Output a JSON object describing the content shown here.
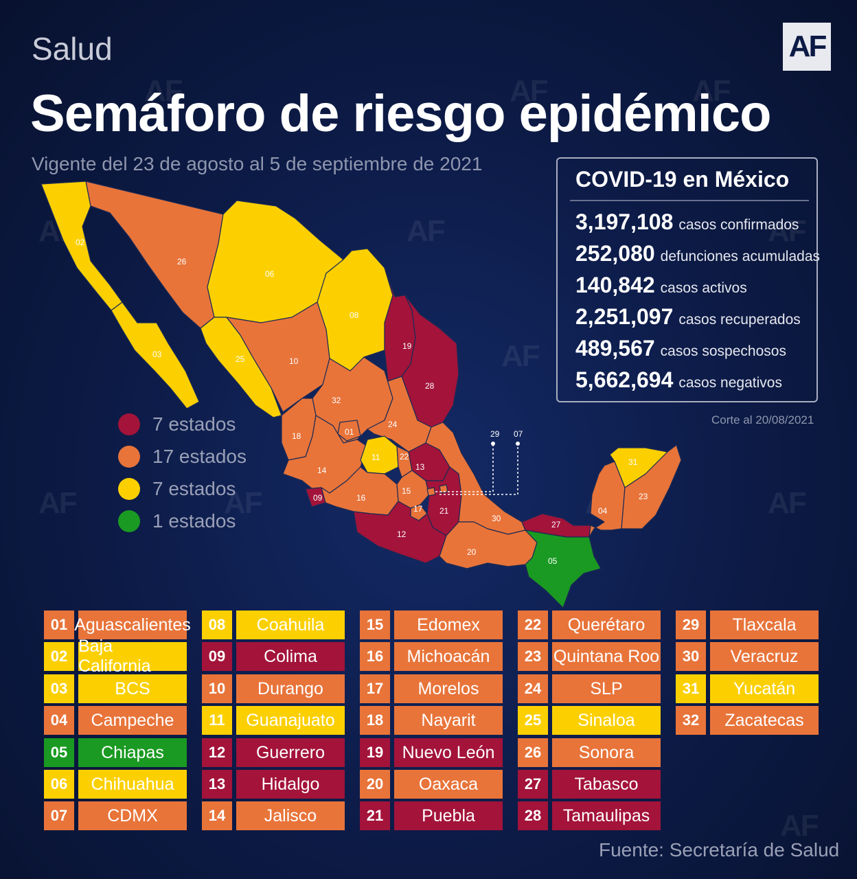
{
  "header": {
    "section": "Salud",
    "logo": "AF",
    "title": "Semáforo de riesgo epidémico",
    "subtitle": "Vigente del 23 de agosto al 5 de septiembre de 2021"
  },
  "colors": {
    "red": "#a3133a",
    "orange": "#e8743a",
    "yellow": "#fcd000",
    "green": "#1a9a22",
    "background": "#0c1a45"
  },
  "stats": {
    "title": "COVID-19 en México",
    "rows": [
      {
        "value": "3,197,108",
        "label": "casos confirmados"
      },
      {
        "value": "252,080",
        "label": "defunciones acumuladas"
      },
      {
        "value": "140,842",
        "label": "casos activos"
      },
      {
        "value": "2,251,097",
        "label": "casos recuperados"
      },
      {
        "value": "489,567",
        "label": "casos sospechosos"
      },
      {
        "value": "5,662,694",
        "label": "casos negativos"
      }
    ],
    "cutoff": "Corte al 20/08/2021"
  },
  "legend": [
    {
      "color": "red",
      "label": "7 estados"
    },
    {
      "color": "orange",
      "label": "17 estados"
    },
    {
      "color": "yellow",
      "label": "7 estados"
    },
    {
      "color": "green",
      "label": "1 estados"
    }
  ],
  "map_callouts": [
    "29",
    "07"
  ],
  "states": [
    {
      "code": "01",
      "name": "Aguascalientes",
      "color": "orange"
    },
    {
      "code": "02",
      "name": "Baja California",
      "color": "yellow"
    },
    {
      "code": "03",
      "name": "BCS",
      "color": "yellow"
    },
    {
      "code": "04",
      "name": "Campeche",
      "color": "orange"
    },
    {
      "code": "05",
      "name": "Chiapas",
      "color": "green"
    },
    {
      "code": "06",
      "name": "Chihuahua",
      "color": "yellow"
    },
    {
      "code": "07",
      "name": "CDMX",
      "color": "orange"
    },
    {
      "code": "08",
      "name": "Coahuila",
      "color": "yellow"
    },
    {
      "code": "09",
      "name": "Colima",
      "color": "red"
    },
    {
      "code": "10",
      "name": "Durango",
      "color": "orange"
    },
    {
      "code": "11",
      "name": "Guanajuato",
      "color": "yellow"
    },
    {
      "code": "12",
      "name": "Guerrero",
      "color": "red"
    },
    {
      "code": "13",
      "name": "Hidalgo",
      "color": "red"
    },
    {
      "code": "14",
      "name": "Jalisco",
      "color": "orange"
    },
    {
      "code": "15",
      "name": "Edomex",
      "color": "orange"
    },
    {
      "code": "16",
      "name": "Michoacán",
      "color": "orange"
    },
    {
      "code": "17",
      "name": "Morelos",
      "color": "orange"
    },
    {
      "code": "18",
      "name": "Nayarit",
      "color": "orange"
    },
    {
      "code": "19",
      "name": "Nuevo León",
      "color": "red"
    },
    {
      "code": "20",
      "name": "Oaxaca",
      "color": "orange"
    },
    {
      "code": "21",
      "name": "Puebla",
      "color": "red"
    },
    {
      "code": "22",
      "name": "Querétaro",
      "color": "orange"
    },
    {
      "code": "23",
      "name": "Quintana Roo",
      "color": "orange"
    },
    {
      "code": "24",
      "name": "SLP",
      "color": "orange"
    },
    {
      "code": "25",
      "name": "Sinaloa",
      "color": "yellow"
    },
    {
      "code": "26",
      "name": "Sonora",
      "color": "orange"
    },
    {
      "code": "27",
      "name": "Tabasco",
      "color": "red"
    },
    {
      "code": "28",
      "name": "Tamaulipas",
      "color": "red"
    },
    {
      "code": "29",
      "name": "Tlaxcala",
      "color": "orange"
    },
    {
      "code": "30",
      "name": "Veracruz",
      "color": "orange"
    },
    {
      "code": "31",
      "name": "Yucatán",
      "color": "yellow"
    },
    {
      "code": "32",
      "name": "Zacatecas",
      "color": "orange"
    }
  ],
  "source": "Fuente: Secretaría de Salud"
}
